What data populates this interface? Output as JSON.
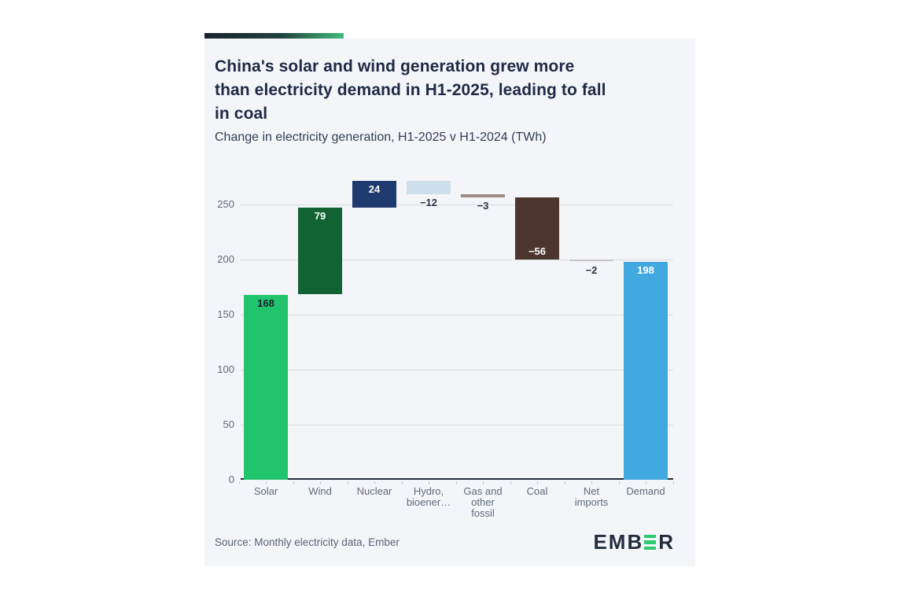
{
  "header": {
    "title_lines": [
      "China's solar and wind generation grew more",
      "than electricity demand in H1-2025, leading to fall",
      "in coal"
    ],
    "subtitle": "Change in electricity generation, H1-2025 v H1-2024 (TWh)"
  },
  "footer": {
    "source": "Source: Monthly electricity data, Ember",
    "logo": {
      "text": "EMBER",
      "left": "EMB",
      "right": "R",
      "accent_color": "#2dc96f",
      "text_color": "#232d3e"
    }
  },
  "colors": {
    "card_background": "#f4f5f8",
    "accent_gradient_start": "#182430",
    "accent_gradient_end": "#43bb7e",
    "gridline": "#d9dbe0",
    "axis_line": "#232e3d",
    "axis_label": "#5f6a7b"
  },
  "chart_data": {
    "type": "bar",
    "subtype": "waterfall",
    "title": "China's solar and wind generation grew more than electricity demand in H1-2025, leading to fall in coal",
    "subtitle": "Change in electricity generation, H1-2025 v H1-2024 (TWh)",
    "xlabel": "",
    "ylabel": "",
    "ylim": [
      0,
      279
    ],
    "yticks": [
      0,
      50,
      100,
      150,
      200,
      250
    ],
    "grid": true,
    "legend": "none",
    "categories": [
      "Solar",
      "Wind",
      "Nuclear",
      "Hydro,\nbioener…",
      "Gas and\nother\nfossil",
      "Coal",
      "Net\nimports",
      "Demand"
    ],
    "items": [
      {
        "name": "Solar",
        "value": 168,
        "display": "168",
        "total": false,
        "color": "#22c36d",
        "value_pos": "inside-top",
        "value_color": "#13202e"
      },
      {
        "name": "Wind",
        "value": 79,
        "display": "79",
        "total": false,
        "color": "#116334",
        "value_pos": "inside-top",
        "value_color": "#ffffff"
      },
      {
        "name": "Nuclear",
        "value": 24,
        "display": "24",
        "total": false,
        "color": "#1f3a6e",
        "value_pos": "inside-top",
        "value_color": "#ffffff"
      },
      {
        "name": "Hydro, bioenergy and other renewables",
        "value": -12,
        "display": "−12",
        "total": false,
        "color": "#cddfeb",
        "value_pos": "below",
        "value_color": "#2b3547"
      },
      {
        "name": "Gas and other fossil",
        "value": -3,
        "display": "−3",
        "total": false,
        "color": "#9a8b86",
        "value_pos": "below",
        "value_color": "#2b3547"
      },
      {
        "name": "Coal",
        "value": -56,
        "display": "−56",
        "total": false,
        "color": "#4b352e",
        "value_pos": "inside-bottom",
        "value_color": "#ffffff"
      },
      {
        "name": "Net imports",
        "value": -2,
        "display": "−2",
        "total": false,
        "color": "#c5c3c4",
        "value_pos": "below",
        "value_color": "#2b3547"
      },
      {
        "name": "Demand",
        "value": 198,
        "display": "198",
        "total": true,
        "color": "#41a8e0",
        "value_pos": "inside-top",
        "value_color": "#ffffff"
      }
    ]
  }
}
